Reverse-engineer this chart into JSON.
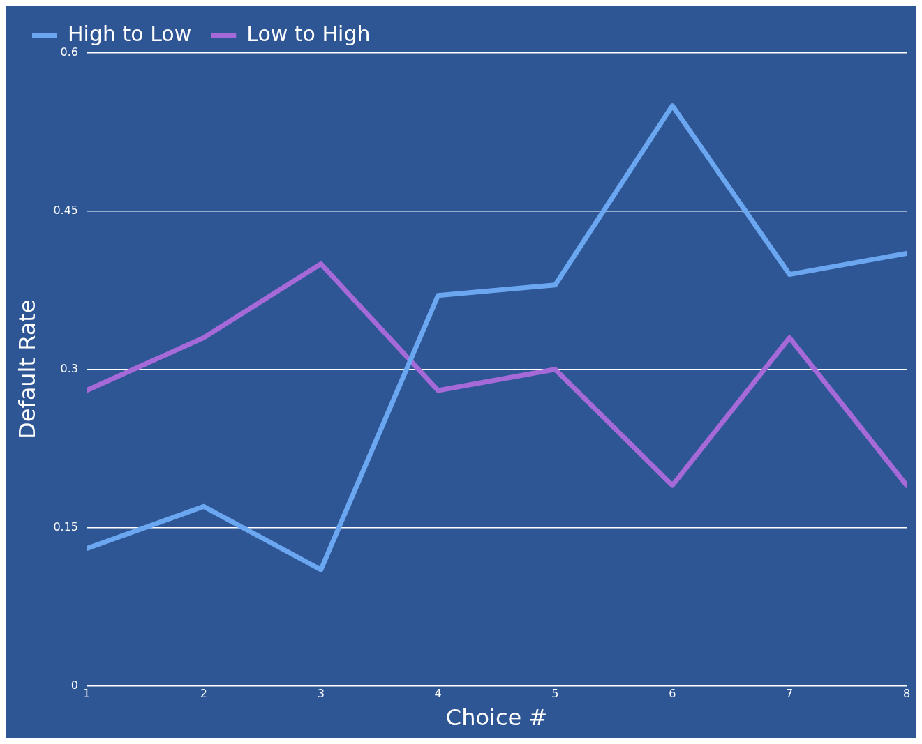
{
  "chart_data": {
    "type": "line",
    "xlabel": "Choice #",
    "ylabel": "Default Rate",
    "x": [
      1,
      2,
      3,
      4,
      5,
      6,
      7,
      8
    ],
    "series": [
      {
        "name": "High to Low",
        "color": "#6aa7f0",
        "values": [
          0.13,
          0.17,
          0.11,
          0.37,
          0.38,
          0.55,
          0.39,
          0.41
        ]
      },
      {
        "name": "Low to High",
        "color": "#a66ad8",
        "values": [
          0.28,
          0.33,
          0.4,
          0.28,
          0.3,
          0.19,
          0.33,
          0.19
        ]
      }
    ],
    "xlim": [
      1,
      8
    ],
    "xticks": [
      1,
      2,
      3,
      4,
      5,
      6,
      7,
      8
    ],
    "ylim": [
      0,
      0.6
    ],
    "yticks": [
      0,
      0.15,
      0.3,
      0.45,
      0.6
    ],
    "grid": "y",
    "legend": "top left",
    "marker": "none",
    "line_style": "solid"
  }
}
